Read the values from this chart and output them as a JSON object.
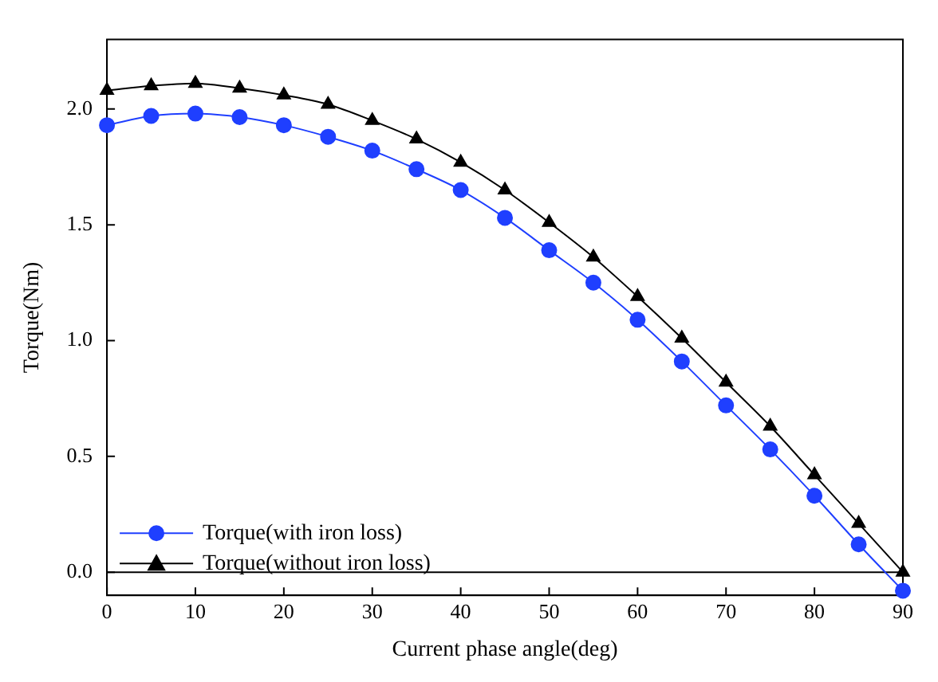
{
  "chart_data": {
    "type": "line",
    "xlabel": "Current phase angle(deg)",
    "ylabel": "Torque(Nm)",
    "x": [
      0,
      5,
      10,
      15,
      20,
      25,
      30,
      35,
      40,
      45,
      50,
      55,
      60,
      65,
      70,
      75,
      80,
      85,
      90
    ],
    "series": [
      {
        "name": "Torque(with iron loss)",
        "color": "#1f3fff",
        "marker": "circle",
        "values": [
          1.93,
          1.97,
          1.98,
          1.965,
          1.93,
          1.88,
          1.82,
          1.74,
          1.65,
          1.53,
          1.39,
          1.25,
          1.09,
          0.91,
          0.72,
          0.53,
          0.33,
          0.12,
          -0.08
        ]
      },
      {
        "name": "Torque(without iron loss)",
        "color": "#000000",
        "marker": "triangle",
        "values": [
          2.08,
          2.1,
          2.11,
          2.09,
          2.06,
          2.02,
          1.95,
          1.87,
          1.77,
          1.65,
          1.51,
          1.36,
          1.19,
          1.01,
          0.82,
          0.63,
          0.42,
          0.21,
          0.0
        ]
      }
    ],
    "xlim": [
      0,
      90
    ],
    "xticks": [
      0,
      10,
      20,
      30,
      40,
      50,
      60,
      70,
      80,
      90
    ],
    "ylim": [
      -0.1,
      2.3
    ],
    "yticks": [
      {
        "value": 0,
        "label": "0.0"
      },
      {
        "value": 0.5,
        "label": "0.5"
      },
      {
        "value": 1,
        "label": "1.0"
      },
      {
        "value": 1.5,
        "label": "1.5"
      },
      {
        "value": 2,
        "label": "2.0"
      }
    ],
    "ref_lines": [
      {
        "axis": "y",
        "value": 0,
        "color": "#000000"
      }
    ],
    "grid": false,
    "legend": "bottom left",
    "line_style": "solid"
  }
}
